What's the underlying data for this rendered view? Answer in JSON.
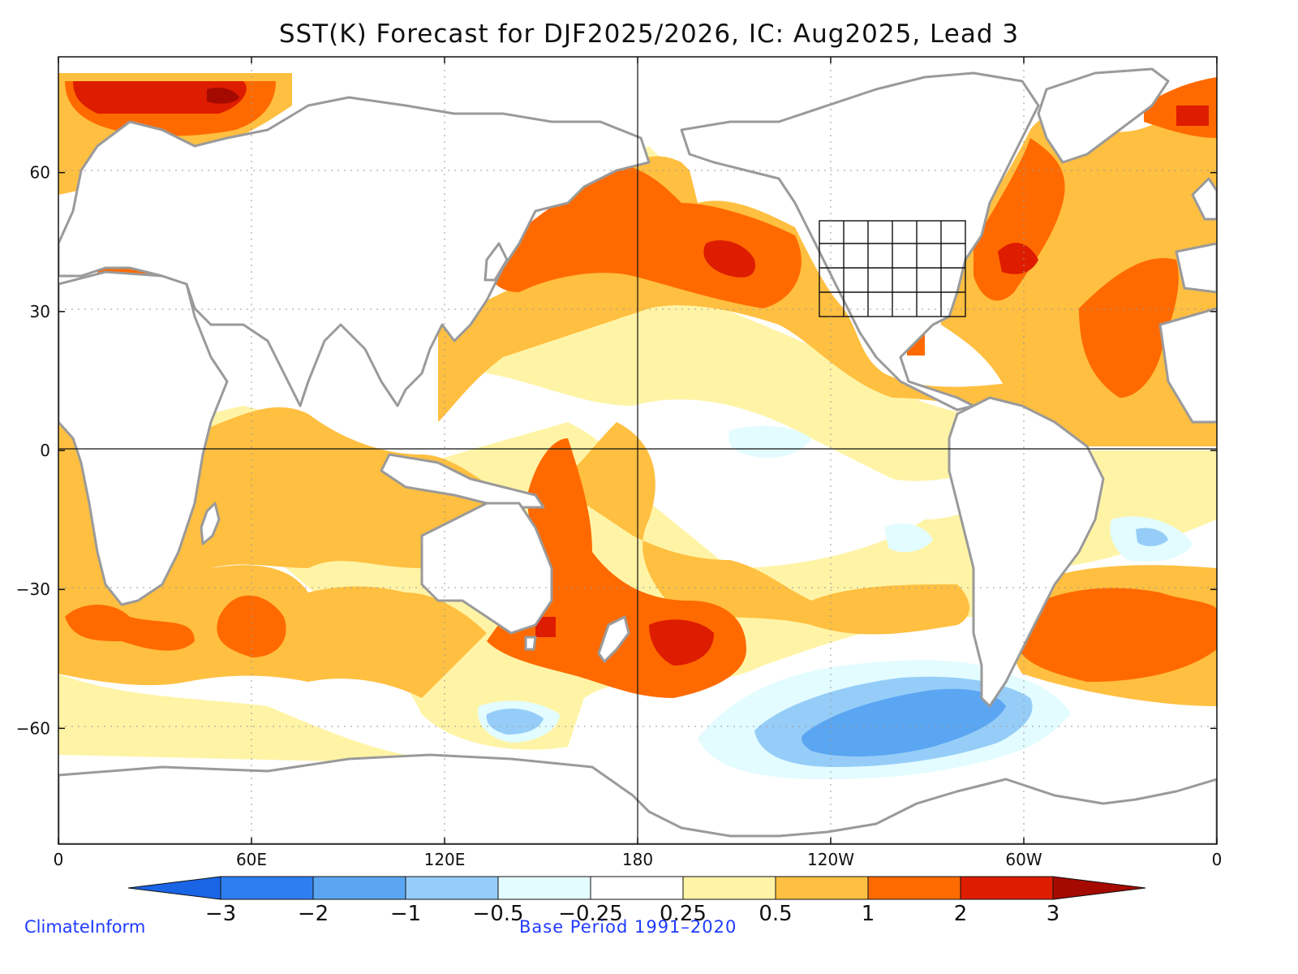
{
  "title": "SST(K) Forecast for DJF2025/2026, IC: Aug2025, Lead 3",
  "credit": "ClimateInform",
  "base_period": "Base Period 1991–2020",
  "axes": {
    "lat_ticks": [
      {
        "value": 60,
        "label": "60"
      },
      {
        "value": 30,
        "label": "30"
      },
      {
        "value": 0,
        "label": "0"
      },
      {
        "value": -30,
        "label": "−30"
      },
      {
        "value": -60,
        "label": "−60"
      }
    ],
    "lon_ticks": [
      {
        "value": 0,
        "label": "0"
      },
      {
        "value": 60,
        "label": "60E"
      },
      {
        "value": 120,
        "label": "120E"
      },
      {
        "value": 180,
        "label": "180"
      },
      {
        "value": 240,
        "label": "120W"
      },
      {
        "value": 300,
        "label": "60W"
      },
      {
        "value": 360,
        "label": "0"
      }
    ],
    "lat_range": [
      -85,
      85
    ],
    "lon_range": [
      0,
      360
    ]
  },
  "colorbar": {
    "levels": [
      "−3",
      "−2",
      "−1",
      "−0.5",
      "−0.25",
      "0.25",
      "0.5",
      "1",
      "2",
      "3"
    ],
    "colors": [
      "#1a64e6",
      "#2e7ef0",
      "#5aa6f2",
      "#96cdf8",
      "#e2fcff",
      "#ffffff",
      "#fff4a6",
      "#ffbf40",
      "#ff6a00",
      "#de1c00",
      "#a50a00"
    ]
  },
  "chart_data": {
    "type": "heatmap",
    "title": "SST(K) Forecast for DJF2025/2026, IC: Aug2025, Lead 3",
    "variable": "SST anomaly (K)",
    "season": "DJF2025/2026",
    "initial_condition": "Aug2025",
    "lead": 3,
    "base_period": "1991-2020",
    "levels": [
      -3,
      -2,
      -1,
      -0.5,
      -0.25,
      0.25,
      0.5,
      1,
      2,
      3
    ],
    "xlim": [
      0,
      360
    ],
    "ylim": [
      -85,
      85
    ],
    "regions": [
      {
        "name": "north-pacific-warm-core",
        "lon": [
          188,
          208
        ],
        "lat": [
          37,
          46
        ],
        "value_range": [
          2,
          3
        ]
      },
      {
        "name": "north-pacific-warm-belt",
        "lon": [
          130,
          220
        ],
        "lat": [
          25,
          60
        ],
        "value_range": [
          1,
          2
        ]
      },
      {
        "name": "barents-sea-warm",
        "lon": [
          10,
          58
        ],
        "lat": [
          68,
          82
        ],
        "value_range": [
          2,
          3
        ]
      },
      {
        "name": "gulf-stream-warm",
        "lon": [
          285,
          300
        ],
        "lat": [
          35,
          45
        ],
        "value_range": [
          2,
          3
        ]
      },
      {
        "name": "north-atlantic-warm",
        "lon": [
          280,
          355
        ],
        "lat": [
          5,
          60
        ],
        "value_range": [
          1,
          2
        ]
      },
      {
        "name": "tasman-sea-warm",
        "lon": [
          145,
          180
        ],
        "lat": [
          -55,
          -5
        ],
        "value_range": [
          1,
          2
        ]
      },
      {
        "name": "south-pacific-warm-core",
        "lon": [
          190,
          205
        ],
        "lat": [
          -48,
          -38
        ],
        "value_range": [
          2,
          3
        ]
      },
      {
        "name": "south-atlantic-warm",
        "lon": [
          310,
          360
        ],
        "lat": [
          -52,
          -25
        ],
        "value_range": [
          1,
          2
        ]
      },
      {
        "name": "southern-indian-warm",
        "lon": [
          0,
          100
        ],
        "lat": [
          -55,
          -25
        ],
        "value_range": [
          0.5,
          2
        ]
      },
      {
        "name": "equatorial-pacific-near-normal",
        "lon": [
          180,
          270
        ],
        "lat": [
          -25,
          15
        ],
        "value_range": [
          -0.5,
          0.25
        ]
      },
      {
        "name": "southeast-pacific-cold",
        "lon": [
          235,
          292
        ],
        "lat": [
          -75,
          -52
        ],
        "value_range": [
          -2,
          -1
        ]
      },
      {
        "name": "south-atlantic-cold-patch",
        "lon": [
          335,
          350
        ],
        "lat": [
          -28,
          -20
        ],
        "value_range": [
          -1,
          -0.5
        ]
      },
      {
        "name": "southern-ocean-cold-patch",
        "lon": [
          133,
          153
        ],
        "lat": [
          -69,
          -56
        ],
        "value_range": [
          -1,
          -0.5
        ]
      }
    ]
  }
}
